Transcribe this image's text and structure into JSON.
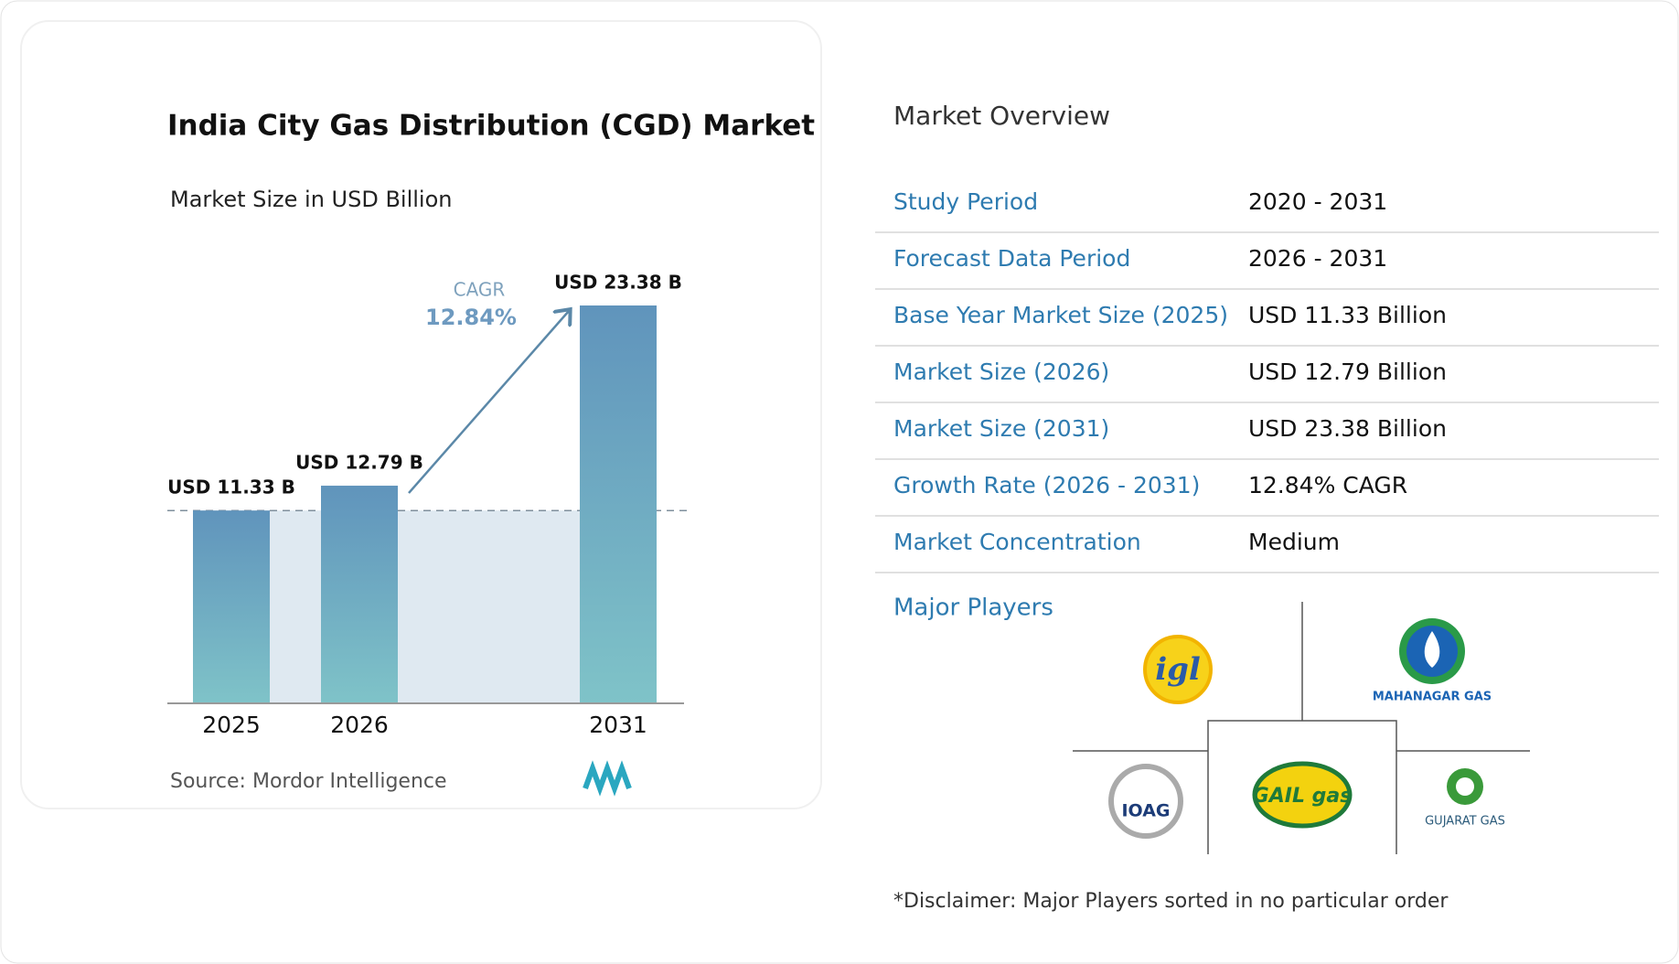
{
  "chart_data": {
    "type": "bar",
    "title": "India City Gas Distribution (CGD) Market",
    "subtitle": "Market Size in USD Billion",
    "categories": [
      "2025",
      "2026",
      "2031"
    ],
    "values": [
      11.33,
      12.79,
      23.38
    ],
    "value_labels": [
      "USD 11.33 B",
      "USD 12.79 B",
      "USD 23.38 B"
    ],
    "color": "#5f93b8",
    "cagr_label": "CAGR",
    "cagr": "12.84%",
    "source": "Source:  Mordor Intelligence"
  },
  "overview": {
    "title": "Market Overview",
    "rows": [
      [
        "Study Period",
        "2020 - 2031"
      ],
      [
        "Forecast Data Period",
        "2026 - 2031"
      ],
      [
        "Base Year Market Size (2025)",
        "USD 11.33 Billion"
      ],
      [
        "Market Size (2026)",
        "USD 12.79 Billion"
      ],
      [
        "Market Size (2031)",
        "USD 23.38 Billion"
      ],
      [
        "Growth Rate (2026 - 2031)",
        "12.84% CAGR"
      ],
      [
        "Market Concentration",
        "Medium"
      ]
    ]
  },
  "players": {
    "title": "Major Players",
    "logos": [
      "igl",
      "MAHANAGAR GAS",
      "IOAG",
      "GAIL gas",
      "GUJARAT GAS"
    ]
  },
  "disclaimer": "*Disclaimer: Major Players sorted in no particular order"
}
